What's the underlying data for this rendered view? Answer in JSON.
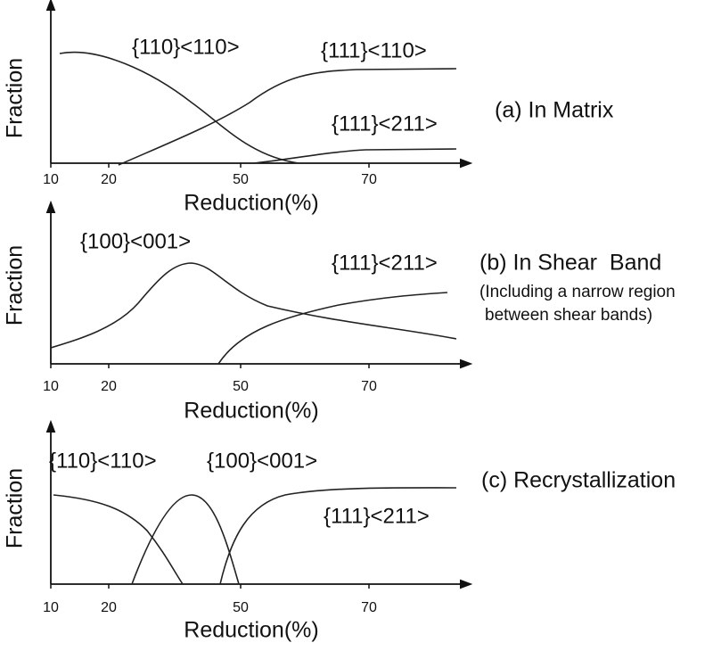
{
  "panels": [
    {
      "y_label": "Fraction",
      "x_label": "Reduction(%)",
      "x_ticks": [
        "10",
        "20",
        "50",
        "70"
      ],
      "caption": "(a) In Matrix",
      "curve_labels": [
        "{110}<110>",
        "{111}<110>",
        "{111}<211>"
      ]
    },
    {
      "y_label": "Fraction",
      "x_label": "Reduction(%)",
      "x_ticks": [
        "10",
        "20",
        "50",
        "70"
      ],
      "caption": "(b) In Shear  Band",
      "note": [
        "(Including a narrow region",
        "between shear bands)"
      ],
      "curve_labels": [
        "{100}<001>",
        "{111}<211>"
      ]
    },
    {
      "y_label": "Fraction",
      "x_label": "Reduction(%)",
      "x_ticks": [
        "10",
        "20",
        "50",
        "70"
      ],
      "caption": "(c) Recrystallization",
      "curve_labels": [
        "{110}<110>",
        "{100}<001>",
        "{111}<211>"
      ]
    }
  ]
}
